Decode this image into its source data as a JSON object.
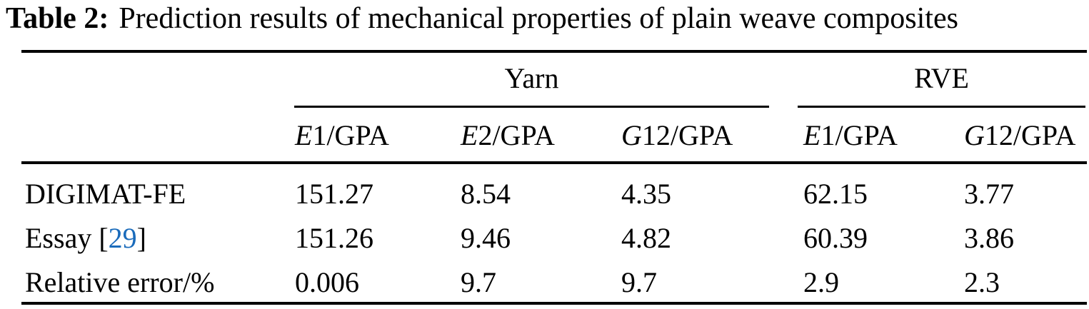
{
  "caption": {
    "label": "Table 2:",
    "text": "Prediction results of mechanical properties of plain weave composites"
  },
  "table": {
    "groups": [
      {
        "label": "Yarn"
      },
      {
        "label": "RVE"
      }
    ],
    "columns": [
      {
        "symbol": "E",
        "rest": "1/GPA"
      },
      {
        "symbol": "E",
        "rest": "2/GPA"
      },
      {
        "symbol": "G",
        "rest": "12/GPA"
      },
      {
        "symbol": "E",
        "rest": "1/GPA"
      },
      {
        "symbol": "G",
        "rest": "12/GPA"
      }
    ],
    "rows": [
      {
        "label": "DIGIMAT-FE",
        "values": [
          "151.27",
          "8.54",
          "4.35",
          "62.15",
          "3.77"
        ]
      },
      {
        "label_prefix": "Essay [",
        "citation": "29",
        "label_suffix": "]",
        "values": [
          "151.26",
          "9.46",
          "4.82",
          "60.39",
          "3.86"
        ]
      },
      {
        "label": "Relative error/%",
        "values": [
          "0.006",
          "9.7",
          "9.7",
          "2.9",
          "2.3"
        ]
      }
    ],
    "citation_color": "#1a6bbb"
  }
}
